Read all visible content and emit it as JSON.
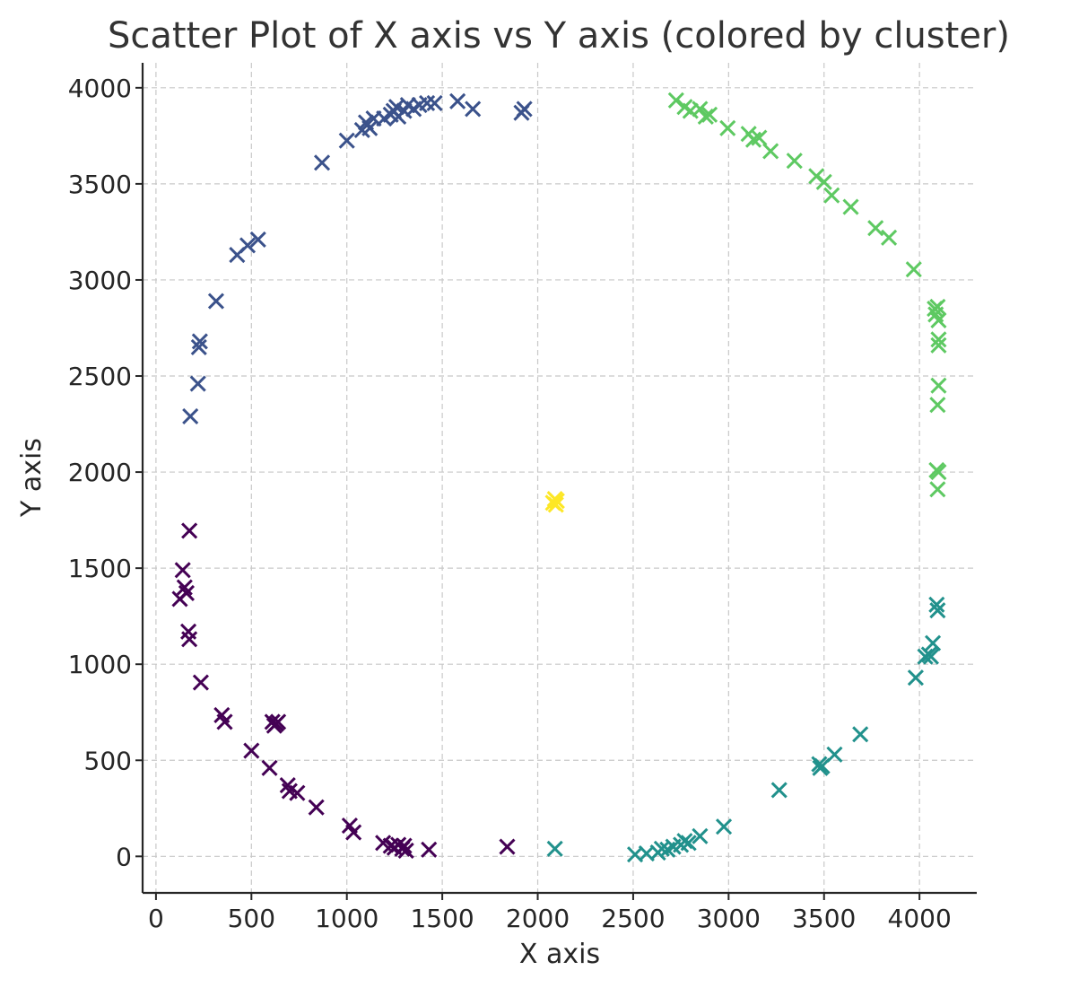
{
  "chart_data": {
    "type": "scatter",
    "title": "Scatter Plot of X axis vs Y axis (colored by cluster)",
    "xlabel": "X axis",
    "ylabel": "Y axis",
    "xlim": [
      -70,
      4300
    ],
    "ylim": [
      -190,
      4130
    ],
    "xticks": [
      "0",
      "500",
      "1000",
      "1500",
      "2000",
      "2500",
      "3000",
      "3500",
      "4000"
    ],
    "yticks": [
      "0",
      "500",
      "1000",
      "1500",
      "2000",
      "2500",
      "3000",
      "3500",
      "4000"
    ],
    "grid": true,
    "marker": "x",
    "series": [
      {
        "color": "#440154",
        "points": [
          [
            175,
            1695
          ],
          [
            140,
            1490
          ],
          [
            150,
            1400
          ],
          [
            160,
            1370
          ],
          [
            125,
            1340
          ],
          [
            170,
            1170
          ],
          [
            175,
            1130
          ],
          [
            235,
            905
          ],
          [
            345,
            735
          ],
          [
            360,
            700
          ],
          [
            500,
            550
          ],
          [
            595,
            460
          ],
          [
            610,
            700
          ],
          [
            620,
            680
          ],
          [
            630,
            690
          ],
          [
            640,
            700
          ],
          [
            690,
            370
          ],
          [
            700,
            340
          ],
          [
            740,
            330
          ],
          [
            840,
            255
          ],
          [
            1015,
            160
          ],
          [
            1035,
            125
          ],
          [
            1190,
            70
          ],
          [
            1230,
            55
          ],
          [
            1250,
            45
          ],
          [
            1270,
            60
          ],
          [
            1290,
            40
          ],
          [
            1300,
            55
          ],
          [
            1310,
            30
          ],
          [
            1430,
            35
          ],
          [
            1840,
            50
          ]
        ]
      },
      {
        "color": "#3b528b",
        "points": [
          [
            180,
            2290
          ],
          [
            220,
            2460
          ],
          [
            225,
            2650
          ],
          [
            230,
            2680
          ],
          [
            315,
            2890
          ],
          [
            425,
            3130
          ],
          [
            480,
            3180
          ],
          [
            535,
            3210
          ],
          [
            870,
            3610
          ],
          [
            1000,
            3725
          ],
          [
            1080,
            3780
          ],
          [
            1100,
            3820
          ],
          [
            1120,
            3790
          ],
          [
            1140,
            3840
          ],
          [
            1195,
            3840
          ],
          [
            1230,
            3860
          ],
          [
            1245,
            3880
          ],
          [
            1260,
            3900
          ],
          [
            1270,
            3850
          ],
          [
            1300,
            3880
          ],
          [
            1320,
            3910
          ],
          [
            1350,
            3890
          ],
          [
            1380,
            3910
          ],
          [
            1420,
            3920
          ],
          [
            1460,
            3920
          ],
          [
            1580,
            3930
          ],
          [
            1660,
            3890
          ],
          [
            1915,
            3870
          ],
          [
            1930,
            3890
          ]
        ]
      },
      {
        "color": "#21918c",
        "points": [
          [
            2090,
            40
          ],
          [
            2510,
            10
          ],
          [
            2570,
            15
          ],
          [
            2630,
            20
          ],
          [
            2650,
            40
          ],
          [
            2680,
            35
          ],
          [
            2710,
            50
          ],
          [
            2750,
            60
          ],
          [
            2770,
            80
          ],
          [
            2790,
            70
          ],
          [
            2850,
            105
          ],
          [
            2975,
            155
          ],
          [
            3265,
            345
          ],
          [
            3475,
            480
          ],
          [
            3480,
            460
          ],
          [
            3490,
            470
          ],
          [
            3555,
            530
          ],
          [
            3690,
            635
          ],
          [
            3980,
            930
          ],
          [
            4030,
            1040
          ],
          [
            4050,
            1050
          ],
          [
            4060,
            1040
          ],
          [
            4070,
            1110
          ],
          [
            4090,
            1310
          ],
          [
            4095,
            1280
          ]
        ]
      },
      {
        "color": "#5ec962",
        "points": [
          [
            2725,
            3935
          ],
          [
            2770,
            3900
          ],
          [
            2800,
            3880
          ],
          [
            2850,
            3890
          ],
          [
            2880,
            3850
          ],
          [
            2900,
            3860
          ],
          [
            2995,
            3790
          ],
          [
            3105,
            3760
          ],
          [
            3130,
            3730
          ],
          [
            3160,
            3740
          ],
          [
            3220,
            3670
          ],
          [
            3345,
            3620
          ],
          [
            3460,
            3540
          ],
          [
            3500,
            3510
          ],
          [
            3540,
            3440
          ],
          [
            3640,
            3380
          ],
          [
            3770,
            3270
          ],
          [
            3840,
            3220
          ],
          [
            3970,
            3055
          ],
          [
            4080,
            2850
          ],
          [
            4085,
            2820
          ],
          [
            4095,
            2860
          ],
          [
            4100,
            2790
          ],
          [
            4100,
            2690
          ],
          [
            4100,
            2660
          ],
          [
            4100,
            2450
          ],
          [
            4095,
            2350
          ],
          [
            4090,
            2010
          ],
          [
            4100,
            2000
          ],
          [
            4095,
            1910
          ]
        ]
      },
      {
        "color": "#fde725",
        "points": [
          [
            2080,
            1840
          ],
          [
            2090,
            1860
          ],
          [
            2095,
            1830
          ],
          [
            2100,
            1850
          ]
        ]
      }
    ]
  }
}
